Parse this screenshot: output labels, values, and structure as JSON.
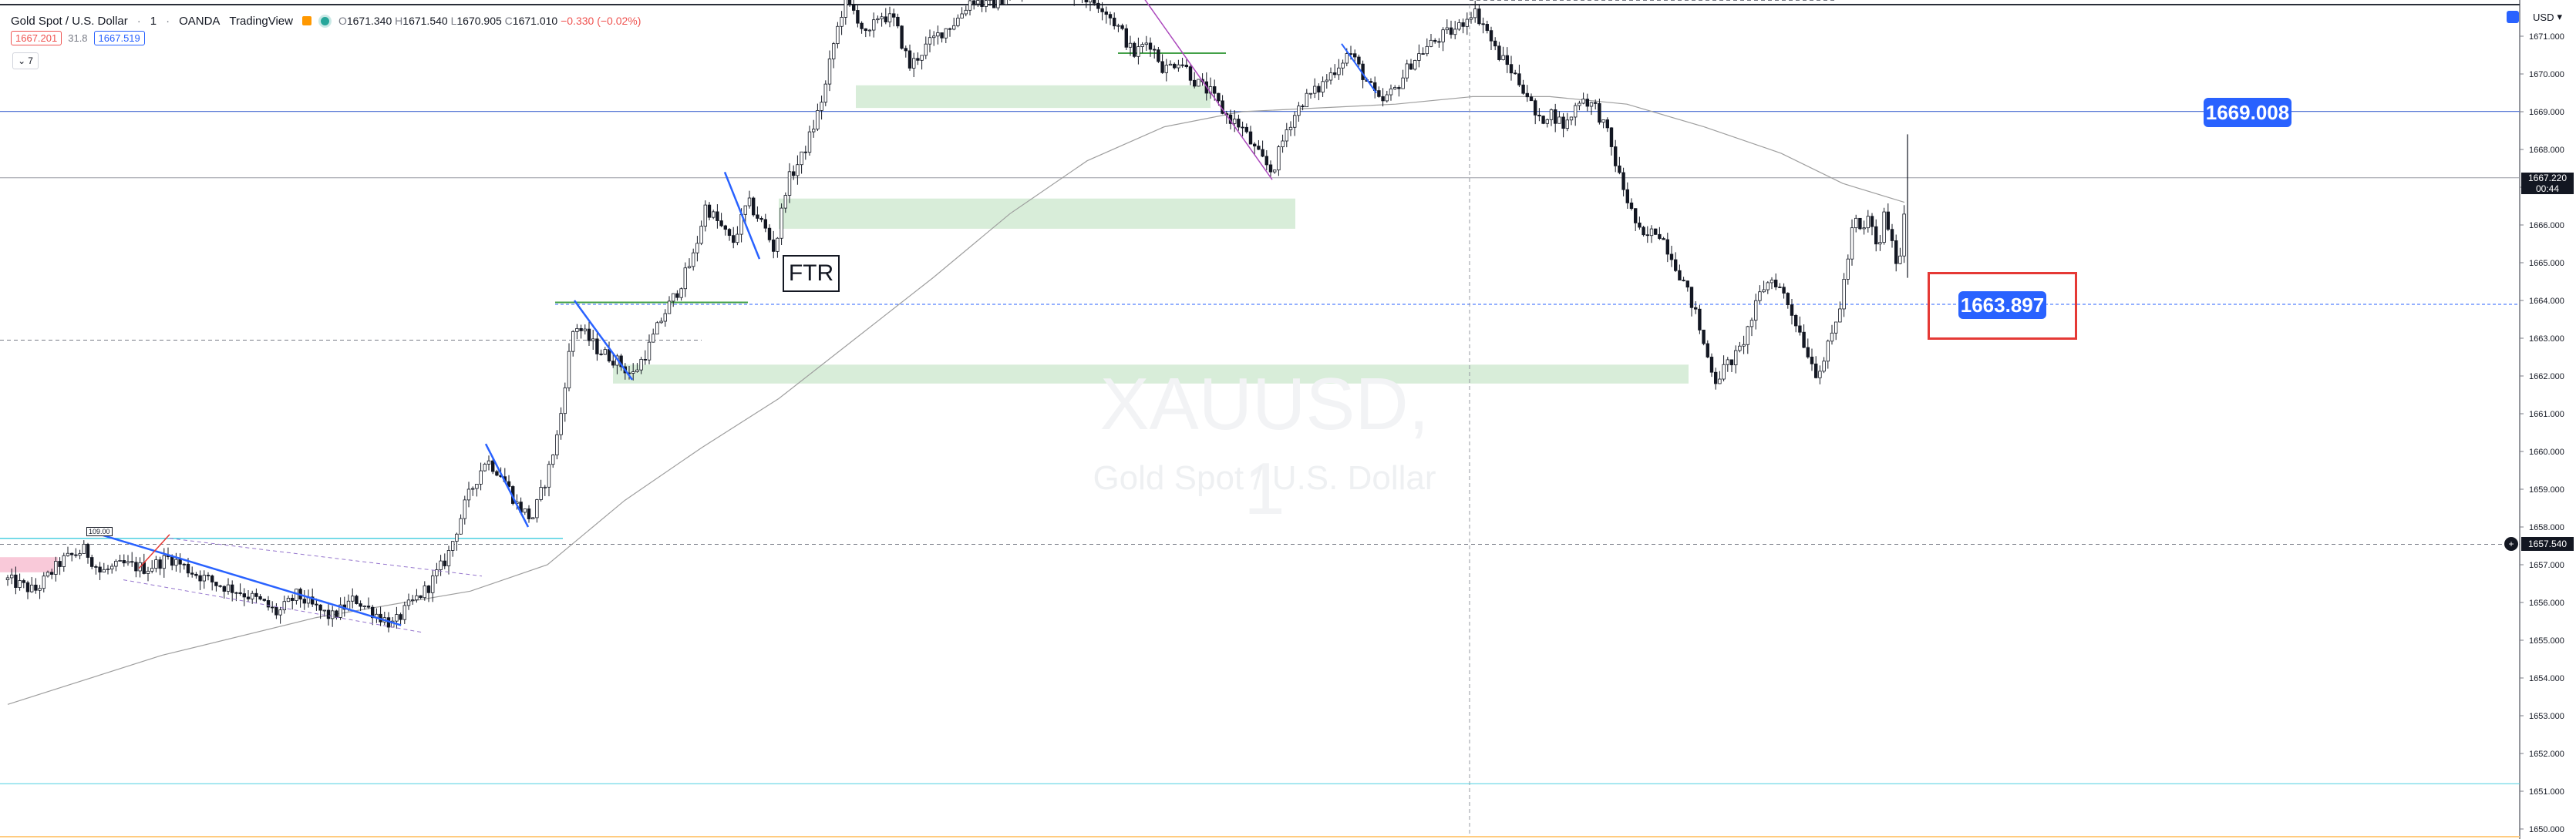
{
  "header": {
    "symbol_desc": "Gold Spot / U.S. Dollar",
    "interval": "1",
    "broker": "OANDA",
    "platform": "TradingView",
    "ohlc": {
      "o": "1671.340",
      "h": "1671.540",
      "l": "1670.905",
      "c": "1671.010",
      "change": "−0.330 (−0.02%)"
    }
  },
  "trade": {
    "sell": "1667.201",
    "spread": "31.8",
    "buy": "1667.519"
  },
  "indicator_count": "7",
  "currency": "USD",
  "watermark": {
    "symbol": "XAUUSD, 1",
    "description": "Gold Spot / U.S. Dollar"
  },
  "annotations": {
    "ftr": "FTR",
    "level_1": "1669.008",
    "level_2": "1663.897",
    "swing_high_label": "109.00"
  },
  "price_tag": {
    "price": "1667.220",
    "countdown": "00:44"
  },
  "crosshair": {
    "price": "1657.540"
  },
  "chart_data": {
    "type": "candlestick",
    "ylim": [
      1649.5,
      1672.5
    ],
    "y_ticks": [
      "1671.000",
      "1670.000",
      "1669.000",
      "1668.000",
      "1667.000",
      "1666.000",
      "1665.000",
      "1664.000",
      "1663.000",
      "1662.000",
      "1661.000",
      "1660.000",
      "1659.000",
      "1658.000",
      "1657.000",
      "1656.000",
      "1655.000",
      "1654.000",
      "1653.000",
      "1652.000",
      "1651.000",
      "1650.000"
    ],
    "close_path": [
      [
        0,
        1656.6
      ],
      [
        35,
        1656.3
      ],
      [
        70,
        1657.1
      ],
      [
        100,
        1657.4
      ],
      [
        120,
        1656.8
      ],
      [
        150,
        1657.0
      ],
      [
        180,
        1656.9
      ],
      [
        210,
        1657.2
      ],
      [
        240,
        1656.8
      ],
      [
        270,
        1656.5
      ],
      [
        300,
        1656.3
      ],
      [
        330,
        1656.0
      ],
      [
        350,
        1655.7
      ],
      [
        375,
        1656.2
      ],
      [
        395,
        1655.9
      ],
      [
        420,
        1655.6
      ],
      [
        450,
        1656.1
      ],
      [
        470,
        1655.8
      ],
      [
        500,
        1655.4
      ],
      [
        520,
        1655.9
      ],
      [
        545,
        1656.4
      ],
      [
        570,
        1657.2
      ],
      [
        595,
        1658.7
      ],
      [
        620,
        1659.8
      ],
      [
        640,
        1659.4
      ],
      [
        660,
        1658.6
      ],
      [
        680,
        1658.2
      ],
      [
        700,
        1659.4
      ],
      [
        715,
        1660.6
      ],
      [
        725,
        1662.2
      ],
      [
        735,
        1663.4
      ],
      [
        748,
        1663.1
      ],
      [
        765,
        1662.7
      ],
      [
        790,
        1662.4
      ],
      [
        810,
        1662.0
      ],
      [
        830,
        1662.7
      ],
      [
        850,
        1663.6
      ],
      [
        870,
        1664.3
      ],
      [
        890,
        1665.2
      ],
      [
        905,
        1666.5
      ],
      [
        920,
        1666.1
      ],
      [
        940,
        1665.5
      ],
      [
        960,
        1666.6
      ],
      [
        980,
        1666.0
      ],
      [
        995,
        1665.3
      ],
      [
        1010,
        1667.1
      ],
      [
        1030,
        1667.8
      ],
      [
        1045,
        1668.6
      ],
      [
        1060,
        1669.6
      ],
      [
        1070,
        1670.7
      ],
      [
        1085,
        1671.9
      ],
      [
        1100,
        1671.6
      ],
      [
        1115,
        1670.9
      ],
      [
        1130,
        1671.6
      ],
      [
        1150,
        1671.4
      ],
      [
        1170,
        1670.2
      ],
      [
        1190,
        1670.7
      ],
      [
        1210,
        1671.1
      ],
      [
        1230,
        1671.4
      ],
      [
        1250,
        1672.0
      ],
      [
        1270,
        1671.8
      ],
      [
        1300,
        1672.1
      ],
      [
        1330,
        1672.2
      ],
      [
        1360,
        1672.4
      ],
      [
        1390,
        1672.1
      ],
      [
        1420,
        1671.8
      ],
      [
        1445,
        1671.1
      ],
      [
        1460,
        1670.5
      ],
      [
        1480,
        1670.9
      ],
      [
        1500,
        1670.1
      ],
      [
        1520,
        1670.4
      ],
      [
        1540,
        1669.8
      ],
      [
        1560,
        1669.5
      ],
      [
        1580,
        1668.9
      ],
      [
        1600,
        1668.6
      ],
      [
        1620,
        1667.9
      ],
      [
        1640,
        1667.4
      ],
      [
        1660,
        1668.6
      ],
      [
        1680,
        1669.3
      ],
      [
        1700,
        1669.6
      ],
      [
        1720,
        1670.1
      ],
      [
        1740,
        1670.6
      ],
      [
        1760,
        1669.9
      ],
      [
        1780,
        1669.2
      ],
      [
        1800,
        1669.6
      ],
      [
        1820,
        1670.3
      ],
      [
        1840,
        1670.7
      ],
      [
        1860,
        1671.0
      ],
      [
        1880,
        1671.2
      ],
      [
        1900,
        1671.7
      ],
      [
        1915,
        1671.3
      ],
      [
        1930,
        1670.6
      ],
      [
        1950,
        1670.1
      ],
      [
        1970,
        1669.5
      ],
      [
        1985,
        1668.7
      ],
      [
        2000,
        1669.0
      ],
      [
        2020,
        1668.6
      ],
      [
        2040,
        1669.4
      ],
      [
        2060,
        1669.1
      ],
      [
        2075,
        1668.4
      ],
      [
        2090,
        1667.3
      ],
      [
        2105,
        1666.4
      ],
      [
        2120,
        1665.6
      ],
      [
        2140,
        1665.9
      ],
      [
        2160,
        1665.1
      ],
      [
        2175,
        1664.4
      ],
      [
        2190,
        1663.6
      ],
      [
        2200,
        1662.8
      ],
      [
        2215,
        1661.9
      ],
      [
        2230,
        1662.3
      ],
      [
        2245,
        1662.6
      ],
      [
        2260,
        1663.4
      ],
      [
        2275,
        1664.3
      ],
      [
        2290,
        1664.6
      ],
      [
        2305,
        1664.1
      ],
      [
        2320,
        1663.4
      ],
      [
        2335,
        1662.6
      ],
      [
        2345,
        1662.1
      ],
      [
        2355,
        1662.4
      ],
      [
        2365,
        1663.0
      ],
      [
        2375,
        1663.7
      ],
      [
        2385,
        1664.9
      ],
      [
        2395,
        1666.2
      ],
      [
        2405,
        1665.7
      ],
      [
        2415,
        1666.3
      ],
      [
        2425,
        1665.2
      ],
      [
        2435,
        1666.4
      ],
      [
        2445,
        1665.3
      ],
      [
        2453,
        1665.0
      ],
      [
        2458,
        1665.8
      ],
      [
        2462,
        1667.2
      ]
    ],
    "moving_average": [
      [
        0,
        1653.3
      ],
      [
        200,
        1654.6
      ],
      [
        400,
        1655.6
      ],
      [
        600,
        1656.3
      ],
      [
        700,
        1657.0
      ],
      [
        800,
        1658.7
      ],
      [
        900,
        1660.1
      ],
      [
        1000,
        1661.4
      ],
      [
        1100,
        1663.0
      ],
      [
        1200,
        1664.6
      ],
      [
        1300,
        1666.3
      ],
      [
        1400,
        1667.7
      ],
      [
        1500,
        1668.6
      ],
      [
        1600,
        1669.0
      ],
      [
        1700,
        1669.1
      ],
      [
        1800,
        1669.2
      ],
      [
        1900,
        1669.4
      ],
      [
        2000,
        1669.4
      ],
      [
        2100,
        1669.2
      ],
      [
        2200,
        1668.6
      ],
      [
        2300,
        1667.9
      ],
      [
        2380,
        1667.1
      ],
      [
        2460,
        1666.6
      ]
    ]
  }
}
